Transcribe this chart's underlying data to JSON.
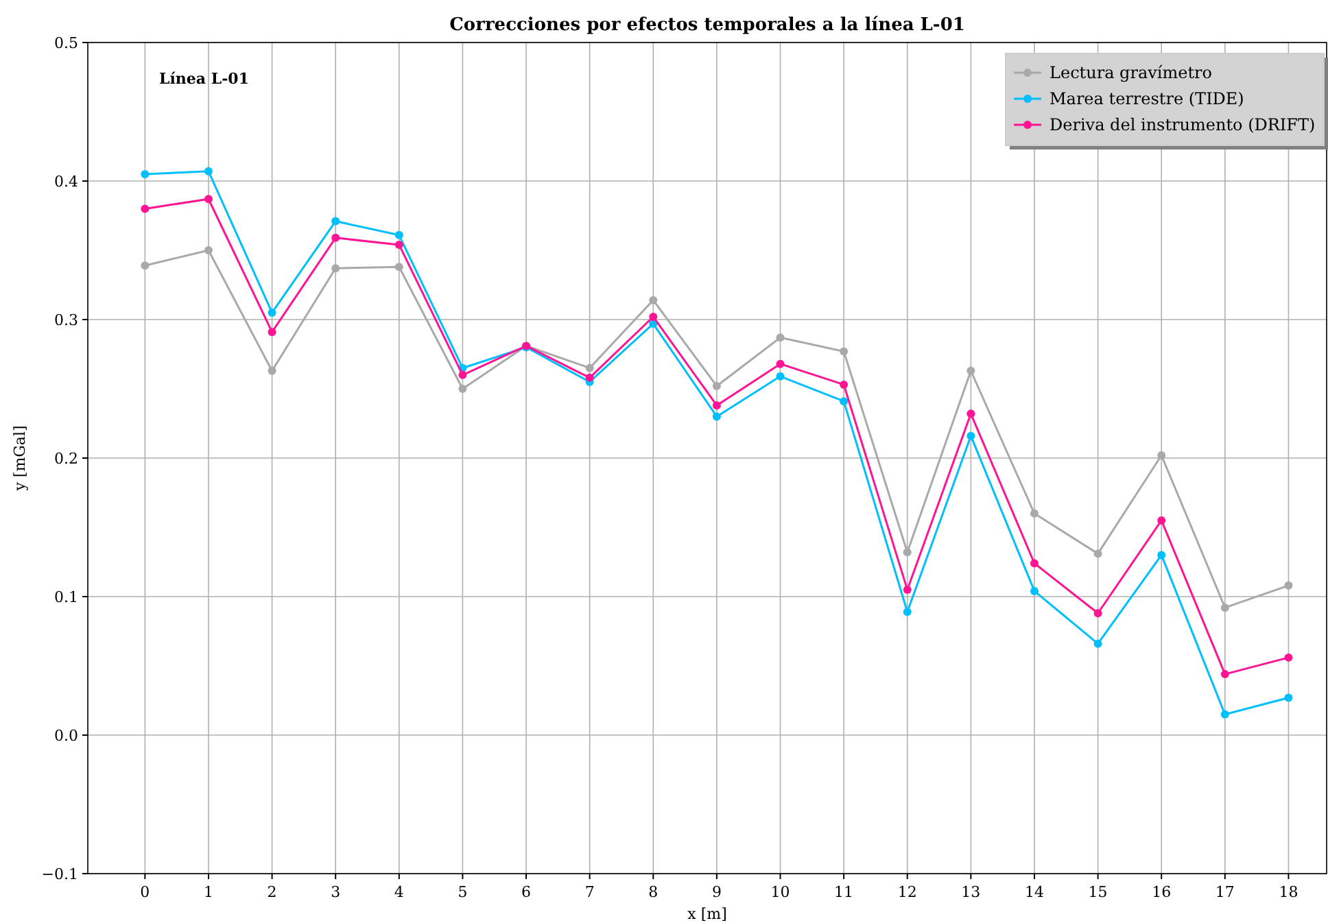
{
  "chart_data": {
    "type": "line",
    "title": "Correcciones por efectos temporales a la línea L-01",
    "xlabel": "x [m]",
    "ylabel": "y [mGal]",
    "x": [
      0,
      1,
      2,
      3,
      4,
      5,
      6,
      7,
      8,
      9,
      10,
      11,
      12,
      13,
      14,
      15,
      16,
      17,
      18
    ],
    "series": [
      {
        "name": "Lectura gravímetro",
        "color": "#a9a9a9",
        "values": [
          0.339,
          0.35,
          0.263,
          0.337,
          0.338,
          0.25,
          0.281,
          0.265,
          0.314,
          0.252,
          0.287,
          0.277,
          0.132,
          0.263,
          0.16,
          0.131,
          0.202,
          0.092,
          0.108
        ]
      },
      {
        "name": "Marea terrestre (TIDE)",
        "color": "#00bfff",
        "values": [
          0.405,
          0.407,
          0.305,
          0.371,
          0.361,
          0.265,
          0.28,
          0.255,
          0.297,
          0.23,
          0.259,
          0.241,
          0.089,
          0.216,
          0.104,
          0.066,
          0.13,
          0.015,
          0.027
        ]
      },
      {
        "name": "Deriva del instrumento (DRIFT)",
        "color": "#ff1493",
        "values": [
          0.38,
          0.387,
          0.291,
          0.359,
          0.354,
          0.26,
          0.281,
          0.258,
          0.302,
          0.238,
          0.268,
          0.253,
          0.105,
          0.232,
          0.124,
          0.088,
          0.155,
          0.044,
          0.056
        ]
      }
    ],
    "xlim": [
      -0.9,
      18.6
    ],
    "xticks": [
      0,
      1,
      2,
      3,
      4,
      5,
      6,
      7,
      8,
      9,
      10,
      11,
      12,
      13,
      14,
      15,
      16,
      17,
      18
    ],
    "ylim": [
      -0.1,
      0.5
    ],
    "yticks": [
      {
        "value": -0.1,
        "label": "−0.1"
      },
      {
        "value": 0,
        "label": "0.0"
      },
      0.1,
      0.2,
      0.3,
      0.4,
      0.5
    ],
    "annotations": [
      "Línea L-01"
    ],
    "grid": true,
    "legend": "top right",
    "marker": "circle",
    "line_style": "solid"
  }
}
